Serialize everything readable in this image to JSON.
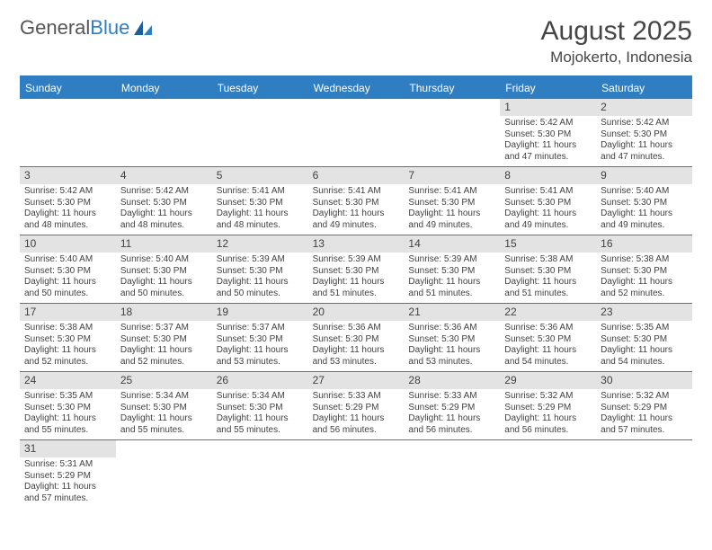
{
  "brand": {
    "part1": "General",
    "part2": "Blue"
  },
  "title": {
    "month": "August 2025",
    "location": "Mojokerto, Indonesia"
  },
  "colors": {
    "accent": "#2f7ec2",
    "header_bg": "#e3e3e3",
    "text": "#414141",
    "bg": "#ffffff"
  },
  "weekdays": [
    "Sunday",
    "Monday",
    "Tuesday",
    "Wednesday",
    "Thursday",
    "Friday",
    "Saturday"
  ],
  "weeks": [
    [
      {
        "n": "",
        "sr": "",
        "ss": "",
        "dl": ""
      },
      {
        "n": "",
        "sr": "",
        "ss": "",
        "dl": ""
      },
      {
        "n": "",
        "sr": "",
        "ss": "",
        "dl": ""
      },
      {
        "n": "",
        "sr": "",
        "ss": "",
        "dl": ""
      },
      {
        "n": "",
        "sr": "",
        "ss": "",
        "dl": ""
      },
      {
        "n": "1",
        "sr": "Sunrise: 5:42 AM",
        "ss": "Sunset: 5:30 PM",
        "dl": "Daylight: 11 hours and 47 minutes."
      },
      {
        "n": "2",
        "sr": "Sunrise: 5:42 AM",
        "ss": "Sunset: 5:30 PM",
        "dl": "Daylight: 11 hours and 47 minutes."
      }
    ],
    [
      {
        "n": "3",
        "sr": "Sunrise: 5:42 AM",
        "ss": "Sunset: 5:30 PM",
        "dl": "Daylight: 11 hours and 48 minutes."
      },
      {
        "n": "4",
        "sr": "Sunrise: 5:42 AM",
        "ss": "Sunset: 5:30 PM",
        "dl": "Daylight: 11 hours and 48 minutes."
      },
      {
        "n": "5",
        "sr": "Sunrise: 5:41 AM",
        "ss": "Sunset: 5:30 PM",
        "dl": "Daylight: 11 hours and 48 minutes."
      },
      {
        "n": "6",
        "sr": "Sunrise: 5:41 AM",
        "ss": "Sunset: 5:30 PM",
        "dl": "Daylight: 11 hours and 49 minutes."
      },
      {
        "n": "7",
        "sr": "Sunrise: 5:41 AM",
        "ss": "Sunset: 5:30 PM",
        "dl": "Daylight: 11 hours and 49 minutes."
      },
      {
        "n": "8",
        "sr": "Sunrise: 5:41 AM",
        "ss": "Sunset: 5:30 PM",
        "dl": "Daylight: 11 hours and 49 minutes."
      },
      {
        "n": "9",
        "sr": "Sunrise: 5:40 AM",
        "ss": "Sunset: 5:30 PM",
        "dl": "Daylight: 11 hours and 49 minutes."
      }
    ],
    [
      {
        "n": "10",
        "sr": "Sunrise: 5:40 AM",
        "ss": "Sunset: 5:30 PM",
        "dl": "Daylight: 11 hours and 50 minutes."
      },
      {
        "n": "11",
        "sr": "Sunrise: 5:40 AM",
        "ss": "Sunset: 5:30 PM",
        "dl": "Daylight: 11 hours and 50 minutes."
      },
      {
        "n": "12",
        "sr": "Sunrise: 5:39 AM",
        "ss": "Sunset: 5:30 PM",
        "dl": "Daylight: 11 hours and 50 minutes."
      },
      {
        "n": "13",
        "sr": "Sunrise: 5:39 AM",
        "ss": "Sunset: 5:30 PM",
        "dl": "Daylight: 11 hours and 51 minutes."
      },
      {
        "n": "14",
        "sr": "Sunrise: 5:39 AM",
        "ss": "Sunset: 5:30 PM",
        "dl": "Daylight: 11 hours and 51 minutes."
      },
      {
        "n": "15",
        "sr": "Sunrise: 5:38 AM",
        "ss": "Sunset: 5:30 PM",
        "dl": "Daylight: 11 hours and 51 minutes."
      },
      {
        "n": "16",
        "sr": "Sunrise: 5:38 AM",
        "ss": "Sunset: 5:30 PM",
        "dl": "Daylight: 11 hours and 52 minutes."
      }
    ],
    [
      {
        "n": "17",
        "sr": "Sunrise: 5:38 AM",
        "ss": "Sunset: 5:30 PM",
        "dl": "Daylight: 11 hours and 52 minutes."
      },
      {
        "n": "18",
        "sr": "Sunrise: 5:37 AM",
        "ss": "Sunset: 5:30 PM",
        "dl": "Daylight: 11 hours and 52 minutes."
      },
      {
        "n": "19",
        "sr": "Sunrise: 5:37 AM",
        "ss": "Sunset: 5:30 PM",
        "dl": "Daylight: 11 hours and 53 minutes."
      },
      {
        "n": "20",
        "sr": "Sunrise: 5:36 AM",
        "ss": "Sunset: 5:30 PM",
        "dl": "Daylight: 11 hours and 53 minutes."
      },
      {
        "n": "21",
        "sr": "Sunrise: 5:36 AM",
        "ss": "Sunset: 5:30 PM",
        "dl": "Daylight: 11 hours and 53 minutes."
      },
      {
        "n": "22",
        "sr": "Sunrise: 5:36 AM",
        "ss": "Sunset: 5:30 PM",
        "dl": "Daylight: 11 hours and 54 minutes."
      },
      {
        "n": "23",
        "sr": "Sunrise: 5:35 AM",
        "ss": "Sunset: 5:30 PM",
        "dl": "Daylight: 11 hours and 54 minutes."
      }
    ],
    [
      {
        "n": "24",
        "sr": "Sunrise: 5:35 AM",
        "ss": "Sunset: 5:30 PM",
        "dl": "Daylight: 11 hours and 55 minutes."
      },
      {
        "n": "25",
        "sr": "Sunrise: 5:34 AM",
        "ss": "Sunset: 5:30 PM",
        "dl": "Daylight: 11 hours and 55 minutes."
      },
      {
        "n": "26",
        "sr": "Sunrise: 5:34 AM",
        "ss": "Sunset: 5:30 PM",
        "dl": "Daylight: 11 hours and 55 minutes."
      },
      {
        "n": "27",
        "sr": "Sunrise: 5:33 AM",
        "ss": "Sunset: 5:29 PM",
        "dl": "Daylight: 11 hours and 56 minutes."
      },
      {
        "n": "28",
        "sr": "Sunrise: 5:33 AM",
        "ss": "Sunset: 5:29 PM",
        "dl": "Daylight: 11 hours and 56 minutes."
      },
      {
        "n": "29",
        "sr": "Sunrise: 5:32 AM",
        "ss": "Sunset: 5:29 PM",
        "dl": "Daylight: 11 hours and 56 minutes."
      },
      {
        "n": "30",
        "sr": "Sunrise: 5:32 AM",
        "ss": "Sunset: 5:29 PM",
        "dl": "Daylight: 11 hours and 57 minutes."
      }
    ],
    [
      {
        "n": "31",
        "sr": "Sunrise: 5:31 AM",
        "ss": "Sunset: 5:29 PM",
        "dl": "Daylight: 11 hours and 57 minutes."
      },
      {
        "n": "",
        "sr": "",
        "ss": "",
        "dl": ""
      },
      {
        "n": "",
        "sr": "",
        "ss": "",
        "dl": ""
      },
      {
        "n": "",
        "sr": "",
        "ss": "",
        "dl": ""
      },
      {
        "n": "",
        "sr": "",
        "ss": "",
        "dl": ""
      },
      {
        "n": "",
        "sr": "",
        "ss": "",
        "dl": ""
      },
      {
        "n": "",
        "sr": "",
        "ss": "",
        "dl": ""
      }
    ]
  ]
}
